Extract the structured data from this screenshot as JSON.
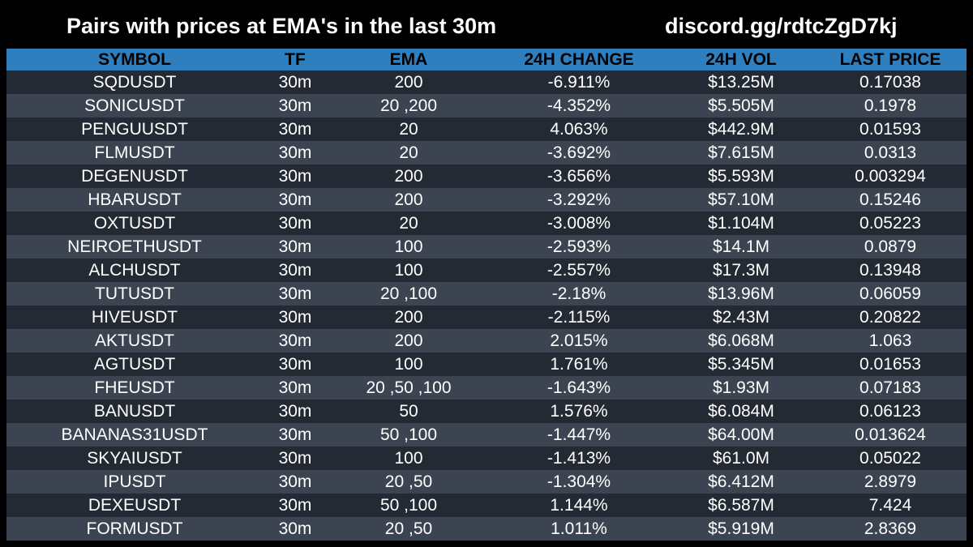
{
  "header": {
    "title": "Pairs with prices at EMA's in the last 30m",
    "invite": "discord.gg/rdtcZgD7kj"
  },
  "colors": {
    "background": "#000000",
    "header_row": "#2f7fbf",
    "row_dark": "#232a33",
    "row_light": "#3b4450",
    "text": "#ffffff"
  },
  "table": {
    "columns": [
      "SYMBOL",
      "TF",
      "EMA",
      "24H CHANGE",
      "24H VOL",
      "LAST PRICE"
    ],
    "rows": [
      [
        "SQDUSDT",
        "30m",
        "200",
        "-6.911%",
        "$13.25M",
        "0.17038"
      ],
      [
        "SONICUSDT",
        "30m",
        "20 ,200",
        "-4.352%",
        "$5.505M",
        "0.1978"
      ],
      [
        "PENGUUSDT",
        "30m",
        "20",
        "4.063%",
        "$442.9M",
        "0.01593"
      ],
      [
        "FLMUSDT",
        "30m",
        "20",
        "-3.692%",
        "$7.615M",
        "0.0313"
      ],
      [
        "DEGENUSDT",
        "30m",
        "200",
        "-3.656%",
        "$5.593M",
        "0.003294"
      ],
      [
        "HBARUSDT",
        "30m",
        "200",
        "-3.292%",
        "$57.10M",
        "0.15246"
      ],
      [
        "OXTUSDT",
        "30m",
        "20",
        "-3.008%",
        "$1.104M",
        "0.05223"
      ],
      [
        "NEIROETHUSDT",
        "30m",
        "100",
        "-2.593%",
        "$14.1M",
        "0.0879"
      ],
      [
        "ALCHUSDT",
        "30m",
        "100",
        "-2.557%",
        "$17.3M",
        "0.13948"
      ],
      [
        "TUTUSDT",
        "30m",
        "20 ,100",
        "-2.18%",
        "$13.96M",
        "0.06059"
      ],
      [
        "HIVEUSDT",
        "30m",
        "200",
        "-2.115%",
        "$2.43M",
        "0.20822"
      ],
      [
        "AKTUSDT",
        "30m",
        "200",
        "2.015%",
        "$6.068M",
        "1.063"
      ],
      [
        "AGTUSDT",
        "30m",
        "100",
        "1.761%",
        "$5.345M",
        "0.01653"
      ],
      [
        "FHEUSDT",
        "30m",
        "20 ,50 ,100",
        "-1.643%",
        "$1.93M",
        "0.07183"
      ],
      [
        "BANUSDT",
        "30m",
        "50",
        "1.576%",
        "$6.084M",
        "0.06123"
      ],
      [
        "BANANAS31USDT",
        "30m",
        "50 ,100",
        "-1.447%",
        "$64.00M",
        "0.013624"
      ],
      [
        "SKYAIUSDT",
        "30m",
        "100",
        "-1.413%",
        "$61.0M",
        "0.05022"
      ],
      [
        "IPUSDT",
        "30m",
        "20 ,50",
        "-1.304%",
        "$6.412M",
        "2.8979"
      ],
      [
        "DEXEUSDT",
        "30m",
        "50 ,100",
        "1.144%",
        "$6.587M",
        "7.424"
      ],
      [
        "FORMUSDT",
        "30m",
        "20 ,50",
        "1.011%",
        "$5.919M",
        "2.8369"
      ]
    ]
  }
}
